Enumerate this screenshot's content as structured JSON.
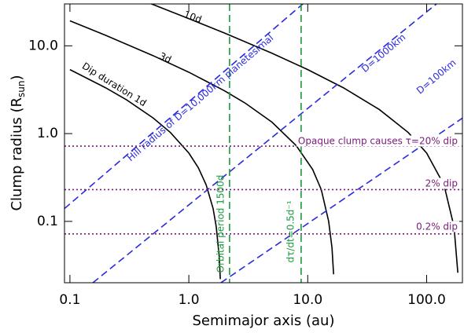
{
  "chart_data": {
    "type": "line",
    "x_label": "Semimajor axis (au)",
    "y_label_parts": [
      "Clump radius (R",
      "sun",
      ")"
    ],
    "xscale": "log",
    "yscale": "log",
    "xlim": [
      0.09,
      200
    ],
    "ylim": [
      0.02,
      30
    ],
    "xticks": [
      0.1,
      {
        "value": 1,
        "label": "1.0"
      },
      {
        "value": 10,
        "label": "10.0"
      },
      {
        "value": 100,
        "label": "100.0"
      }
    ],
    "yticks": [
      0.1,
      {
        "value": 1,
        "label": "1.0"
      },
      {
        "value": 10,
        "label": "10.0"
      }
    ],
    "series": [
      {
        "color": "#000000",
        "dash": "solid",
        "x": [
          0.1,
          0.2,
          0.3,
          0.5,
          0.7,
          1,
          1.2,
          1.4,
          1.6,
          1.7,
          1.8,
          1.84
        ],
        "values": [
          5.36,
          3.32,
          2.42,
          1.51,
          1.03,
          0.6,
          0.41,
          0.26,
          0.14,
          0.087,
          0.04,
          0.022
        ]
      },
      {
        "color": "#000000",
        "dash": "solid",
        "x": [
          0.1,
          0.2,
          0.5,
          1,
          2,
          3,
          5,
          8,
          11,
          13,
          15,
          16,
          16.5
        ],
        "values": [
          19.27,
          13.16,
          7.73,
          5.0,
          3.07,
          2.21,
          1.35,
          0.73,
          0.39,
          0.23,
          0.1,
          0.05,
          0.025
        ]
      },
      {
        "color": "#000000",
        "dash": "solid",
        "x": [
          0.3,
          0.5,
          1,
          2,
          5,
          10,
          20,
          40,
          70,
          100,
          140,
          170,
          183
        ],
        "values": [
          38.6,
          29.51,
          20.4,
          13.96,
          8.24,
          5.36,
          3.32,
          1.88,
          1.03,
          0.6,
          0.26,
          0.087,
          0.026
        ]
      },
      {
        "color": "#2a2ae0",
        "dash": "dashed",
        "x": [
          0.09,
          9.1
        ],
        "values": [
          0.14,
          30
        ]
      },
      {
        "color": "#2a2ae0",
        "dash": "dashed",
        "x": [
          0.156,
          121
        ],
        "values": [
          0.02,
          30
        ]
      },
      {
        "color": "#2a2ae0",
        "dash": "dashed",
        "x": [
          1.86,
          200
        ],
        "values": [
          0.02,
          1.5
        ]
      }
    ],
    "vlines": [
      {
        "color": "#1a9a3a",
        "x": 2.2
      },
      {
        "color": "#1a9a3a",
        "x": 8.8
      }
    ],
    "hlines": [
      {
        "color": "#7a1a7a",
        "value": 0.72
      },
      {
        "color": "#7a1a7a",
        "value": 0.23
      },
      {
        "color": "#7a1a7a",
        "value": 0.072
      }
    ],
    "annotations": [
      {
        "text": "10d",
        "color": "#000000"
      },
      {
        "text": "3d",
        "color": "#000000"
      },
      {
        "text": "Dip duration 1d",
        "color": "#000000"
      },
      {
        "text": "Hill radius of D=10,000km planetesimal",
        "color": "#2a2ae0"
      },
      {
        "text": "D=1000km",
        "color": "#2a2ae0"
      },
      {
        "text": "D=100km",
        "color": "#2a2ae0"
      },
      {
        "text": "Opaque clump causes τ=20% dip",
        "color": "#7a1a7a"
      },
      {
        "text": "2% dip",
        "color": "#7a1a7a"
      },
      {
        "text": "0.2% dip",
        "color": "#7a1a7a"
      },
      {
        "text": "Orbital period 1500d",
        "color": "#1a9a3a"
      },
      {
        "text": "dτ/dt=0.5d⁻¹",
        "color": "#1a9a3a"
      }
    ]
  }
}
